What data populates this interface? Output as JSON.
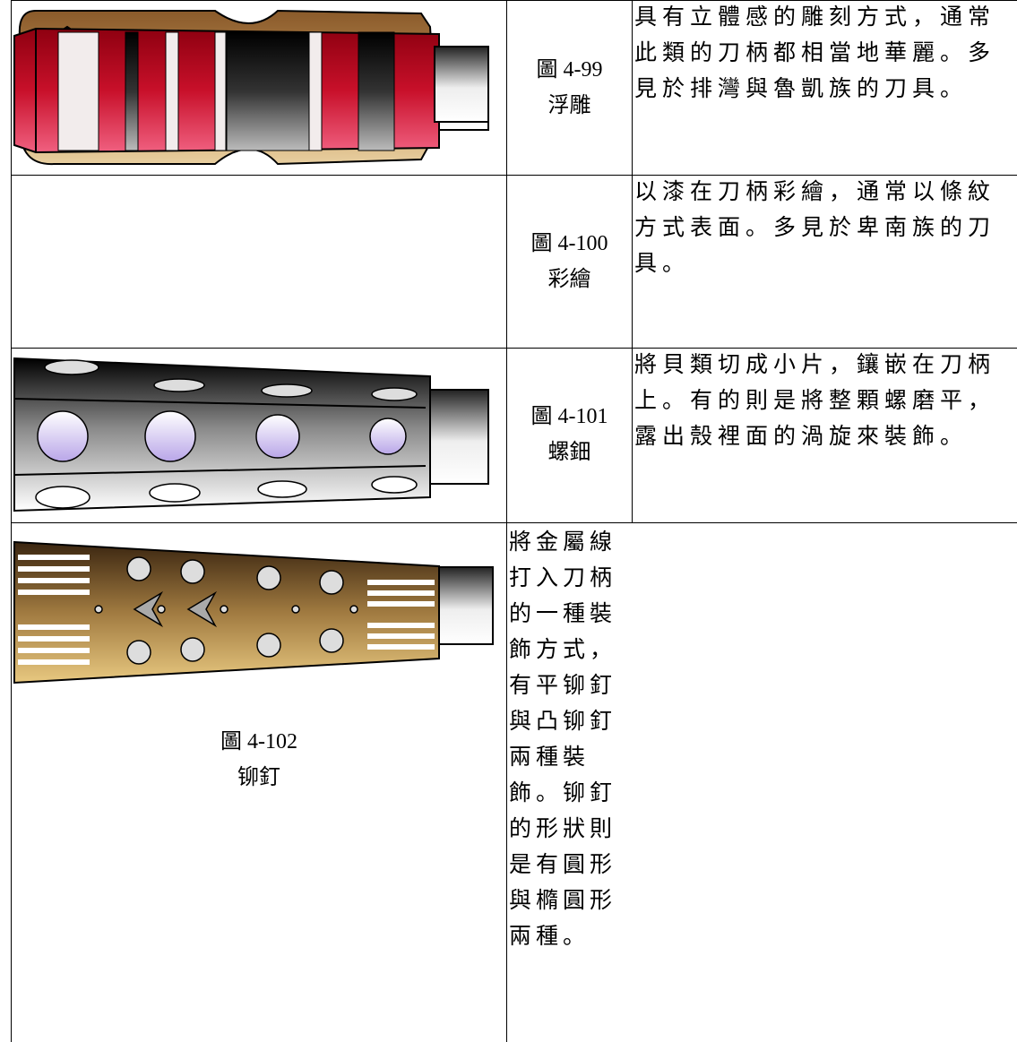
{
  "table": {
    "rows": [
      {
        "figure": "圖 4-99",
        "name": "浮雕",
        "description": "具有立體感的雕刻方式，通常此類的刀柄都相當地華麗。多見於排灣與魯凱族的刀具。"
      },
      {
        "figure": "圖 4-100",
        "name": "彩繪",
        "description": "以漆在刀柄彩繪，通常以條紋方式表面。多見於卑南族的刀具。"
      },
      {
        "figure": "圖 4-101",
        "name": "螺鈿",
        "description": "將貝類切成小片，鑲嵌在刀柄上。有的則是將整顆螺磨平，露出殼裡面的渦旋來裝飾。"
      },
      {
        "figure": "圖 4-102",
        "name": "铆釘",
        "description": "將金屬線打入刀柄的一種裝飾方式，有平铆釘與凸铆釘兩種裝飾。铆釘的形狀則是有圓形與橢圓形兩種。"
      }
    ]
  }
}
